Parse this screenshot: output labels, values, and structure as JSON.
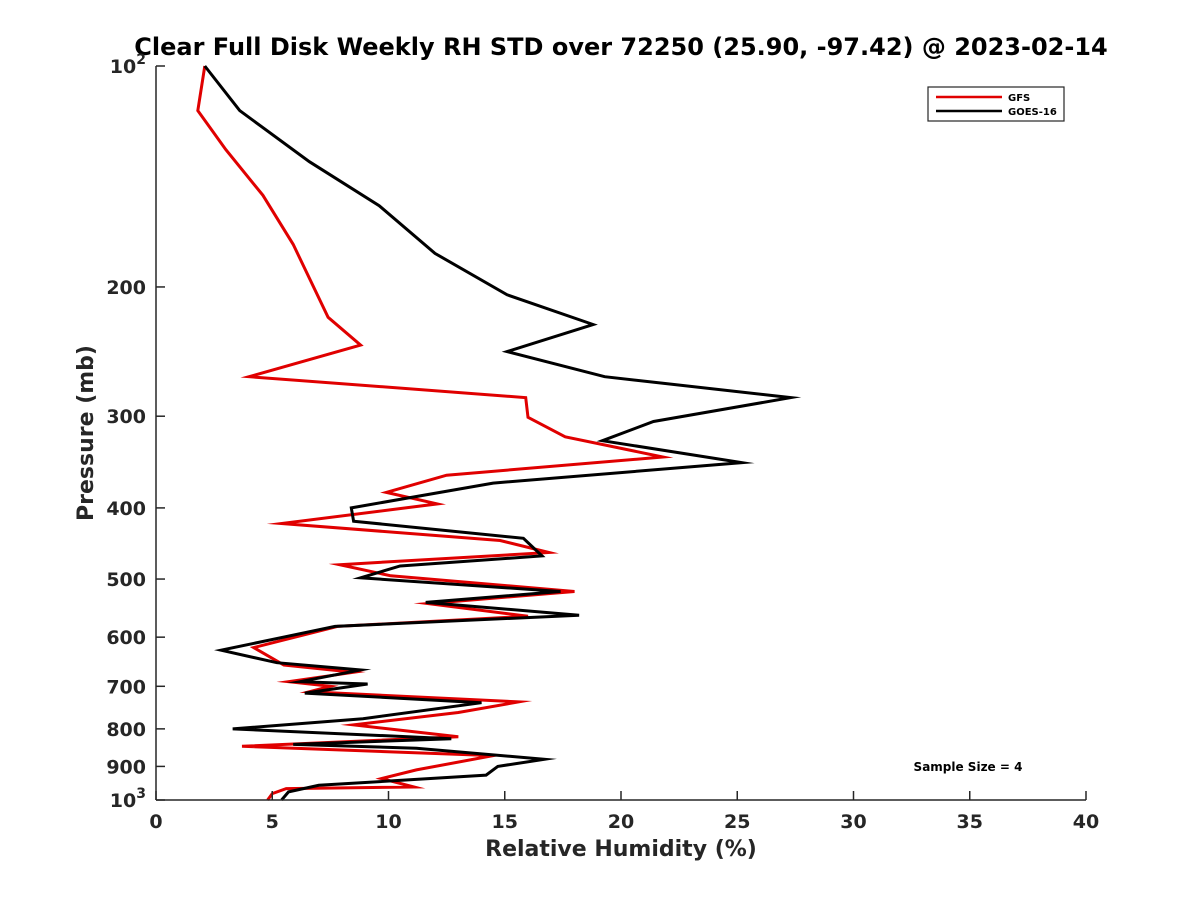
{
  "chart_data": {
    "type": "line",
    "title": "Clear Full Disk Weekly RH STD over 72250 (25.90, -97.42) @ 2023-02-14",
    "xlabel": "Relative Humidity (%)",
    "ylabel": "Pressure (mb)",
    "xlim": [
      0,
      40
    ],
    "ylim": [
      1000,
      100
    ],
    "yscale": "log",
    "xticks": [
      0,
      5,
      10,
      15,
      20,
      25,
      30,
      35,
      40
    ],
    "xtick_labels": [
      "0",
      "5",
      "10",
      "15",
      "20",
      "25",
      "30",
      "35",
      "40"
    ],
    "yticks": [
      100,
      200,
      300,
      400,
      500,
      600,
      700,
      800,
      900,
      1000
    ],
    "ytick_labels": [
      {
        "base": "10",
        "exp": "2"
      },
      {
        "base": "200",
        "exp": ""
      },
      {
        "base": "300",
        "exp": ""
      },
      {
        "base": "400",
        "exp": ""
      },
      {
        "base": "500",
        "exp": ""
      },
      {
        "base": "600",
        "exp": ""
      },
      {
        "base": "700",
        "exp": ""
      },
      {
        "base": "800",
        "exp": ""
      },
      {
        "base": "900",
        "exp": ""
      },
      {
        "base": "10",
        "exp": "3"
      }
    ],
    "grid": false,
    "legend_position": "top-right",
    "annotation": "Sample Size = 4",
    "series": [
      {
        "name": "GFS",
        "color": "#e00000",
        "points": [
          [
            2.1,
            100
          ],
          [
            1.8,
            115
          ],
          [
            3.0,
            130
          ],
          [
            4.6,
            150
          ],
          [
            5.9,
            175
          ],
          [
            7.4,
            220
          ],
          [
            8.8,
            240
          ],
          [
            4.0,
            265
          ],
          [
            15.9,
            283
          ],
          [
            16.0,
            301
          ],
          [
            17.6,
            320
          ],
          [
            21.8,
            341
          ],
          [
            12.5,
            361
          ],
          [
            9.9,
            381
          ],
          [
            12.1,
            395
          ],
          [
            5.4,
            420
          ],
          [
            14.8,
            443
          ],
          [
            16.9,
            460
          ],
          [
            7.9,
            478
          ],
          [
            10.1,
            495
          ],
          [
            18.0,
            520
          ],
          [
            11.7,
            540
          ],
          [
            16.0,
            562
          ],
          [
            7.8,
            580
          ],
          [
            4.2,
            620
          ],
          [
            5.5,
            655
          ],
          [
            8.5,
            670
          ],
          [
            5.7,
            690
          ],
          [
            7.5,
            700
          ],
          [
            6.6,
            712
          ],
          [
            15.6,
            735
          ],
          [
            13.0,
            760
          ],
          [
            8.5,
            790
          ],
          [
            13.0,
            820
          ],
          [
            3.7,
            845
          ],
          [
            14.5,
            870
          ],
          [
            11.2,
            910
          ],
          [
            9.7,
            935
          ],
          [
            11.1,
            960
          ],
          [
            5.6,
            965
          ],
          [
            5.0,
            980
          ],
          [
            4.8,
            1000
          ]
        ]
      },
      {
        "name": "GOES-16",
        "color": "#000000",
        "points": [
          [
            2.1,
            100
          ],
          [
            3.6,
            115
          ],
          [
            6.6,
            135
          ],
          [
            9.6,
            155
          ],
          [
            12.0,
            180
          ],
          [
            15.1,
            205
          ],
          [
            18.8,
            225
          ],
          [
            15.1,
            245
          ],
          [
            19.3,
            265
          ],
          [
            27.3,
            283
          ],
          [
            21.4,
            305
          ],
          [
            19.2,
            324
          ],
          [
            25.2,
            347
          ],
          [
            14.5,
            370
          ],
          [
            8.4,
            400
          ],
          [
            8.5,
            417
          ],
          [
            15.8,
            440
          ],
          [
            16.6,
            465
          ],
          [
            10.5,
            480
          ],
          [
            8.8,
            498
          ],
          [
            17.4,
            520
          ],
          [
            11.6,
            538
          ],
          [
            18.2,
            560
          ],
          [
            7.7,
            580
          ],
          [
            2.8,
            625
          ],
          [
            5.2,
            650
          ],
          [
            8.8,
            665
          ],
          [
            6.2,
            690
          ],
          [
            9.1,
            695
          ],
          [
            6.4,
            715
          ],
          [
            14.0,
            737
          ],
          [
            8.9,
            775
          ],
          [
            3.3,
            800
          ],
          [
            12.7,
            825
          ],
          [
            5.9,
            840
          ],
          [
            11.2,
            850
          ],
          [
            16.7,
            880
          ],
          [
            14.7,
            900
          ],
          [
            14.6,
            905
          ],
          [
            14.2,
            925
          ],
          [
            7.0,
            955
          ],
          [
            5.7,
            975
          ],
          [
            5.4,
            1000
          ]
        ]
      }
    ]
  }
}
